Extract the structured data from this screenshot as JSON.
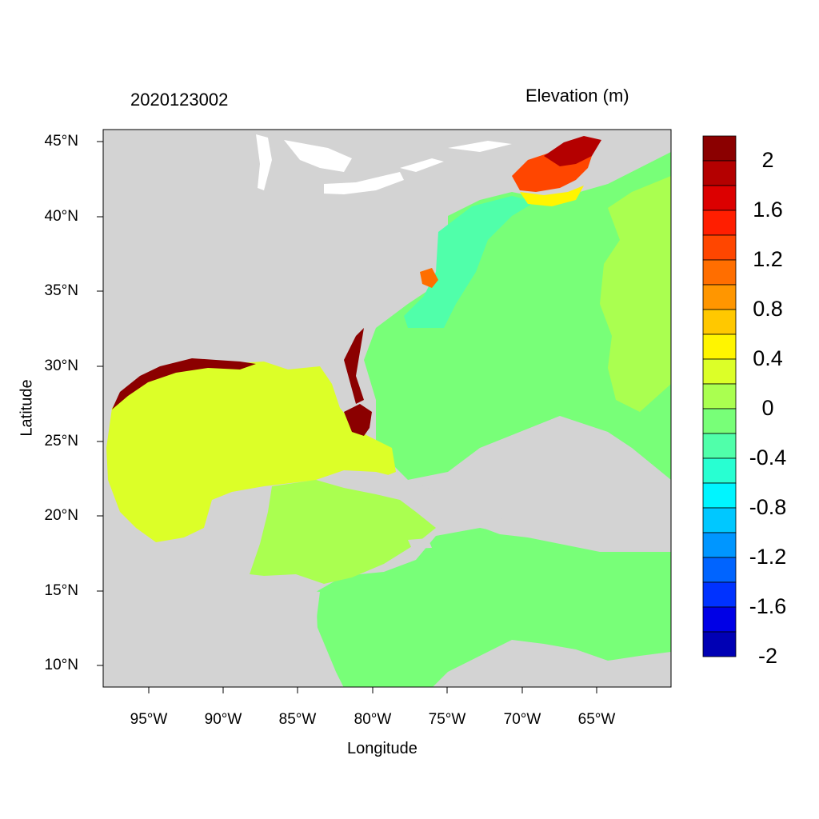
{
  "header": {
    "date_stamp": "2020123002",
    "variable_title": "Elevation (m)"
  },
  "axes": {
    "xlabel": "Longitude",
    "ylabel": "Latitude",
    "lat_ticks": [
      "45°N",
      "40°N",
      "35°N",
      "30°N",
      "25°N",
      "20°N",
      "15°N",
      "10°N"
    ],
    "lon_ticks": [
      "95°W",
      "90°W",
      "85°W",
      "80°W",
      "75°W",
      "70°W",
      "65°W"
    ]
  },
  "colorbar": {
    "labels": [
      "2",
      "1.6",
      "1.2",
      "0.8",
      "0.4",
      "0",
      "-0.4",
      "-0.8",
      "-1.2",
      "-1.6",
      "-2"
    ],
    "colors_top_to_bottom": [
      "#8b0000",
      "#b40000",
      "#dc0000",
      "#ff1e00",
      "#ff4600",
      "#ff6e00",
      "#ff9600",
      "#ffc800",
      "#fff500",
      "#dcff28",
      "#aaff50",
      "#78ff78",
      "#50ffaa",
      "#28ffd2",
      "#00f5ff",
      "#00c8ff",
      "#0096ff",
      "#0064ff",
      "#0032ff",
      "#0000e6",
      "#0000b4"
    ]
  },
  "map": {
    "land_color": "#d3d3d3",
    "water_color": "#ffffff"
  }
}
